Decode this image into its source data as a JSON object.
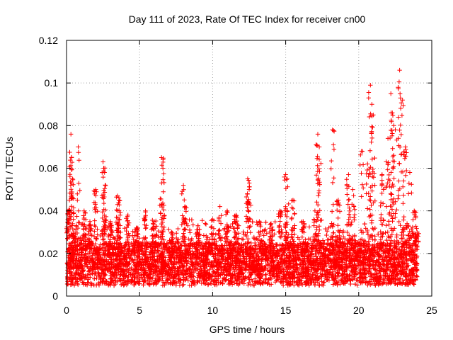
{
  "chart_data": {
    "type": "scatter",
    "title": "Day 111 of 2023, Rate Of TEC Index for receiver cn00",
    "xlabel": "GPS time / hours",
    "ylabel": "ROTI / TECUs",
    "xlim": [
      0,
      25
    ],
    "ylim": [
      0,
      0.12
    ],
    "xticks": [
      0,
      5,
      10,
      15,
      20,
      25
    ],
    "yticks": [
      0,
      0.02,
      0.04,
      0.06,
      0.08,
      0.1,
      0.12
    ],
    "xtick_labels": [
      "0",
      "5",
      "10",
      "15",
      "20",
      "25"
    ],
    "ytick_labels": [
      "0",
      "0.02",
      "0.04",
      "0.06",
      "0.08",
      "0.1",
      "0.12"
    ],
    "grid": true,
    "marker": "plus",
    "series_color": "#ff0000",
    "series": [
      {
        "name": "ROTI",
        "x": [
          0.1,
          0.3,
          0.35,
          0.4,
          0.2,
          0.5,
          0.8,
          1.2,
          1.6,
          2.0,
          2.5,
          2.55,
          2.6,
          3.0,
          3.5,
          3.6,
          4.2,
          4.8,
          5.4,
          6.0,
          6.5,
          6.6,
          7.2,
          8.0,
          8.1,
          9.0,
          10.0,
          10.5,
          11.0,
          11.6,
          12.4,
          12.5,
          13.2,
          14.0,
          14.6,
          15.0,
          15.1,
          15.5,
          16.2,
          17.0,
          17.2,
          17.3,
          18.2,
          18.6,
          19.3,
          19.6,
          20.2,
          20.6,
          20.8,
          20.9,
          21.0,
          21.6,
          22.0,
          22.2,
          22.3,
          22.4,
          22.7,
          22.8,
          23.0,
          23.2,
          23.5,
          23.8,
          24.0
        ],
        "y": [
          0.04,
          0.076,
          0.065,
          0.055,
          0.045,
          0.03,
          0.07,
          0.04,
          0.035,
          0.05,
          0.063,
          0.06,
          0.058,
          0.035,
          0.047,
          0.045,
          0.038,
          0.032,
          0.04,
          0.035,
          0.065,
          0.06,
          0.03,
          0.052,
          0.042,
          0.033,
          0.036,
          0.042,
          0.04,
          0.038,
          0.055,
          0.05,
          0.035,
          0.034,
          0.04,
          0.057,
          0.055,
          0.045,
          0.035,
          0.04,
          0.076,
          0.07,
          0.078,
          0.045,
          0.057,
          0.05,
          0.068,
          0.062,
          0.099,
          0.09,
          0.085,
          0.057,
          0.074,
          0.095,
          0.086,
          0.08,
          0.098,
          0.106,
          0.092,
          0.07,
          0.058,
          0.04,
          0.03
        ],
        "baseline_range": [
          0.005,
          0.025
        ],
        "baseline_samples_per_hour": 240
      }
    ]
  }
}
